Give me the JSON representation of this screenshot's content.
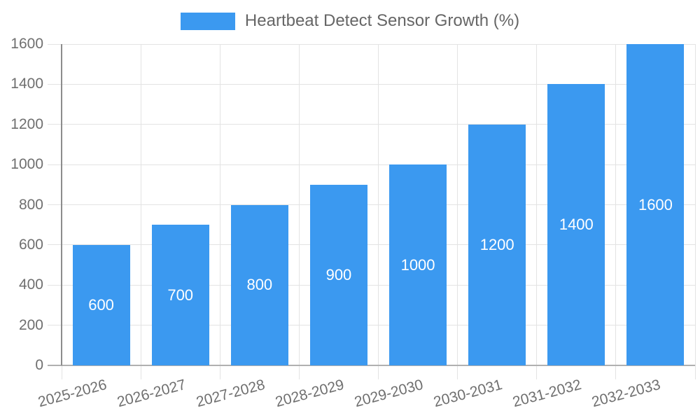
{
  "legend": {
    "label": "Heartbeat Detect Sensor Growth (%)"
  },
  "chart_data": {
    "type": "bar",
    "title": "",
    "xlabel": "",
    "ylabel": "",
    "categories": [
      "2025-2026",
      "2026-2027",
      "2027-2028",
      "2028-2029",
      "2029-2030",
      "2030-2031",
      "2031-2032",
      "2032-2033"
    ],
    "values": [
      600,
      700,
      800,
      900,
      1000,
      1200,
      1400,
      1600
    ],
    "series_name": "Heartbeat Detect Sensor Growth (%)",
    "ylim": [
      0,
      1600
    ],
    "yticks": [
      0,
      200,
      400,
      600,
      800,
      1000,
      1200,
      1400,
      1600
    ],
    "grid": true,
    "legend_position": "top",
    "x_label_rotation_deg": -15,
    "bar_color": "#3b99f0",
    "bar_label_color": "#ffffff",
    "axis_text_color": "#6f6f6f",
    "legend_text_color": "#666666",
    "gridline_color": "#e3e3e3",
    "baseline_color": "#b0b0b0",
    "axis_line_color": "#8c8c8c"
  }
}
